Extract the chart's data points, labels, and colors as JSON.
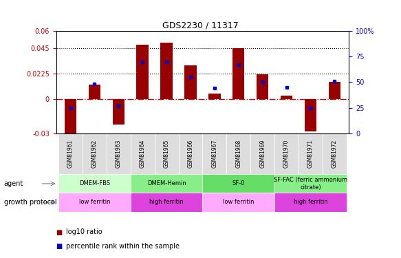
{
  "title": "GDS2230 / 11317",
  "samples": [
    "GSM81961",
    "GSM81962",
    "GSM81963",
    "GSM81964",
    "GSM81965",
    "GSM81966",
    "GSM81967",
    "GSM81968",
    "GSM81969",
    "GSM81970",
    "GSM81971",
    "GSM81972"
  ],
  "log10_ratio": [
    -0.034,
    0.013,
    -0.022,
    0.048,
    0.05,
    0.03,
    0.005,
    0.045,
    0.022,
    0.003,
    -0.028,
    0.015
  ],
  "percentile_rank": [
    25,
    48,
    27,
    70,
    70,
    55,
    44,
    67,
    50,
    45,
    25,
    51
  ],
  "ylim_left": [
    -0.03,
    0.06
  ],
  "ylim_right": [
    0,
    100
  ],
  "yticks_left": [
    -0.03,
    0,
    0.0225,
    0.045,
    0.06
  ],
  "yticks_right": [
    0,
    25,
    50,
    75,
    100
  ],
  "hlines": [
    0.045,
    0.0225
  ],
  "bar_color": "#990000",
  "dot_color": "#0000cc",
  "zero_line_color": "#cc0000",
  "hline_color": "black",
  "agent_groups": [
    {
      "label": "DMEM-FBS",
      "start": 0,
      "end": 3,
      "color": "#ccffcc"
    },
    {
      "label": "DMEM-Hemin",
      "start": 3,
      "end": 6,
      "color": "#88ee88"
    },
    {
      "label": "SF-0",
      "start": 6,
      "end": 9,
      "color": "#66dd66"
    },
    {
      "label": "SF-FAC (ferric ammonium\ncitrate)",
      "start": 9,
      "end": 12,
      "color": "#88ee88"
    }
  ],
  "growth_groups": [
    {
      "label": "low ferritin",
      "start": 0,
      "end": 3,
      "color": "#ffaaff"
    },
    {
      "label": "high ferritin",
      "start": 3,
      "end": 6,
      "color": "#dd44dd"
    },
    {
      "label": "low ferritin",
      "start": 6,
      "end": 9,
      "color": "#ffaaff"
    },
    {
      "label": "high ferritin",
      "start": 9,
      "end": 12,
      "color": "#dd44dd"
    }
  ],
  "legend_items": [
    {
      "label": "log10 ratio",
      "color": "#990000"
    },
    {
      "label": "percentile rank within the sample",
      "color": "#0000cc"
    }
  ],
  "bar_width": 0.5
}
